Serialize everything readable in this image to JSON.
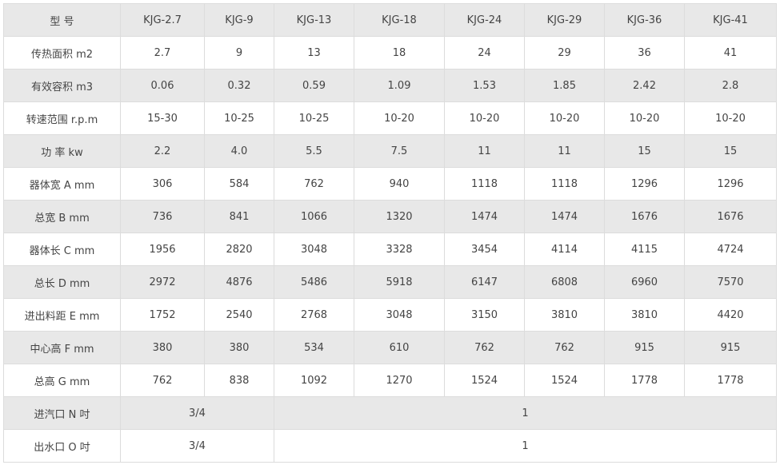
{
  "colors": {
    "shaded_row": "#e8e8e8",
    "border": "#dcdcdc",
    "text": "#444444"
  },
  "header": {
    "label": "型 号",
    "models": [
      "KJG-2.7",
      "KJG-9",
      "KJG-13",
      "KJG-18",
      "KJG-24",
      "KJG-29",
      "KJG-36",
      "KJG-41"
    ]
  },
  "rows": [
    {
      "label": "传热面积 m2",
      "values": [
        "2.7",
        "9",
        "13",
        "18",
        "24",
        "29",
        "36",
        "41"
      ]
    },
    {
      "label": "有效容积 m3",
      "values": [
        "0.06",
        "0.32",
        "0.59",
        "1.09",
        "1.53",
        "1.85",
        "2.42",
        "2.8"
      ]
    },
    {
      "label": "转速范围 r.p.m",
      "values": [
        "15-30",
        "10-25",
        "10-25",
        "10-20",
        "10-20",
        "10-20",
        "10-20",
        "10-20"
      ]
    },
    {
      "label": "功 率 kw",
      "values": [
        "2.2",
        "4.0",
        "5.5",
        "7.5",
        "11",
        "11",
        "15",
        "15"
      ]
    },
    {
      "label": "器体宽 A mm",
      "values": [
        "306",
        "584",
        "762",
        "940",
        "1118",
        "1118",
        "1296",
        "1296"
      ]
    },
    {
      "label": "总宽 B mm",
      "values": [
        "736",
        "841",
        "1066",
        "1320",
        "1474",
        "1474",
        "1676",
        "1676"
      ]
    },
    {
      "label": "器体长 C mm",
      "values": [
        "1956",
        "2820",
        "3048",
        "3328",
        "3454",
        "4114",
        "4115",
        "4724"
      ]
    },
    {
      "label": "总长 D mm",
      "values": [
        "2972",
        "4876",
        "5486",
        "5918",
        "6147",
        "6808",
        "6960",
        "7570"
      ]
    },
    {
      "label": "进出料距 E mm",
      "values": [
        "1752",
        "2540",
        "2768",
        "3048",
        "3150",
        "3810",
        "3810",
        "4420"
      ]
    },
    {
      "label": "中心高 F mm",
      "values": [
        "380",
        "380",
        "534",
        "610",
        "762",
        "762",
        "915",
        "915"
      ]
    },
    {
      "label": "总高 G mm",
      "values": [
        "762",
        "838",
        "1092",
        "1270",
        "1524",
        "1524",
        "1778",
        "1778"
      ]
    }
  ],
  "merged_rows": [
    {
      "label": "进汽口 N 吋",
      "small": "3/4",
      "large": "1"
    },
    {
      "label": "出水口 O 吋",
      "small": "3/4",
      "large": "1"
    }
  ]
}
